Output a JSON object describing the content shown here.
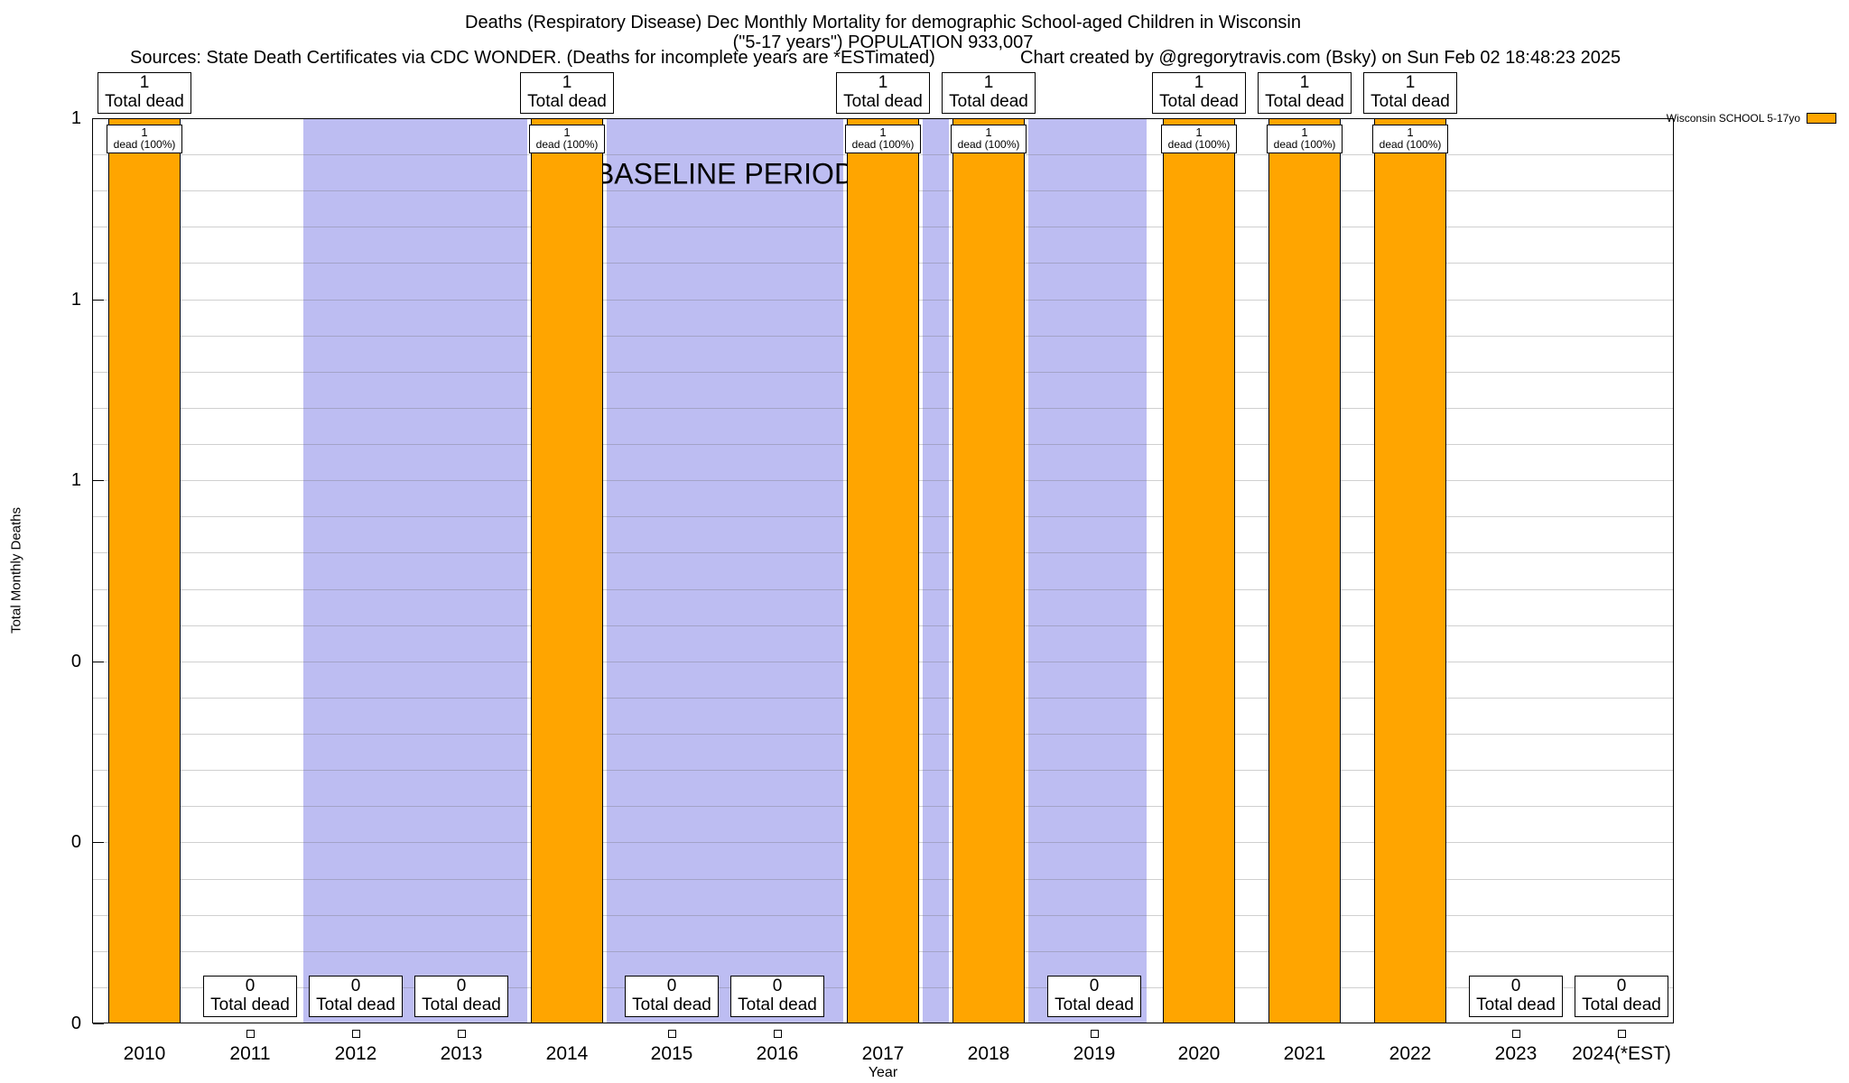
{
  "header": {
    "title_line1": "Deaths (Respiratory Disease) Dec Monthly Mortality for demographic School-aged Children in Wisconsin",
    "title_line2": "(\"5-17 years\") POPULATION 933,007",
    "sources": "Sources: State Death Certificates via CDC WONDER. (Deaths for incomplete years are *ESTimated)",
    "credit": "Chart created by @gregorytravis.com (Bsky) on Sun Feb 02 18:48:23 2025"
  },
  "legend": {
    "label": "Wisconsin SCHOOL 5-17yo",
    "swatch_color": "#ffa500"
  },
  "axes": {
    "xlabel": "Year",
    "ylabel": "Total Monthly Deaths"
  },
  "chart_data": {
    "type": "bar",
    "title": "Deaths (Respiratory Disease) Dec Monthly Mortality for demographic School-aged Children in Wisconsin",
    "subtitle": "(\"5-17 years\") POPULATION 933,007",
    "xlabel": "Year",
    "ylabel": "Total Monthly Deaths",
    "ylim": [
      0,
      1
    ],
    "grid": "on",
    "legend_position": "top-right-outside",
    "y_tick_values": [
      0,
      0.2,
      0.4,
      0.6,
      0.8,
      1.0
    ],
    "y_tick_labels": [
      "0",
      "0",
      "0",
      "1",
      "1",
      "1"
    ],
    "categories": [
      "2010",
      "2011",
      "2012",
      "2013",
      "2014",
      "2015",
      "2016",
      "2017",
      "2018",
      "2019",
      "2020",
      "2021",
      "2022",
      "2023",
      "2024(*EST)"
    ],
    "series": [
      {
        "name": "Wisconsin SCHOOL 5-17yo",
        "color": "#ffa500",
        "values": [
          1,
          0,
          0,
          0,
          1,
          0,
          0,
          1,
          1,
          0,
          1,
          1,
          1,
          0,
          0
        ]
      }
    ],
    "bar_annotations": {
      "total_dead_text": "Total dead",
      "dead_pct_text": "dead (100%)"
    },
    "baseline_region": {
      "label": "BASELINE PERIOD",
      "from_category": "2012",
      "to_category": "2019",
      "color": "#bdbdf2"
    }
  },
  "colors": {
    "bar": "#ffa500",
    "bar_border": "#000000",
    "baseline_band": "#bdbdf2",
    "grid": "#c8c8c8",
    "plot_border": "#000000",
    "background": "#ffffff"
  }
}
